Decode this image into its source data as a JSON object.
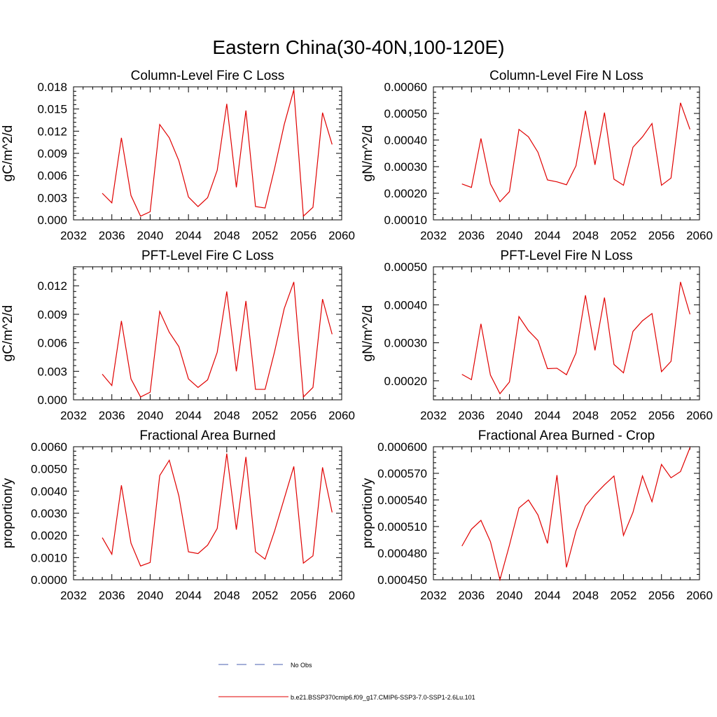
{
  "figure": {
    "title": "Eastern China(30-40N,100-120E)",
    "legend": [
      {
        "label": "No Obs",
        "color": "#4a5fb0",
        "dash": true
      },
      {
        "label": "b.e21.BSSP370cmip6.f09_g17.CMIP6-SSP3-7.0-SSP1-2.6Lu.101",
        "color": "#e00000",
        "dash": false
      }
    ]
  },
  "chart_data": [
    {
      "type": "line",
      "title": "Column-Level Fire C Loss",
      "ylabel": "gC/m^2/d",
      "xlim": [
        2032,
        2060
      ],
      "xticks": [
        "2032",
        "2036",
        "2040",
        "2044",
        "2048",
        "2052",
        "2056",
        "2060"
      ],
      "ylim": [
        0.0,
        0.018
      ],
      "yticks": [
        "0.000",
        "0.003",
        "0.006",
        "0.009",
        "0.012",
        "0.015",
        "0.018"
      ],
      "series": [
        {
          "color": "#e00000",
          "x": [
            2035,
            2036,
            2037,
            2038,
            2039,
            2040,
            2041,
            2042,
            2043,
            2044,
            2045,
            2046,
            2047,
            2048,
            2049,
            2050,
            2051,
            2052,
            2053,
            2054,
            2055,
            2056,
            2057,
            2058,
            2059
          ],
          "values": [
            0.0036,
            0.0023,
            0.0111,
            0.0033,
            0.0005,
            0.0011,
            0.0129,
            0.0111,
            0.008,
            0.0031,
            0.0018,
            0.003,
            0.0067,
            0.0157,
            0.0044,
            0.0148,
            0.0018,
            0.0016,
            0.007,
            0.0129,
            0.0176,
            0.0005,
            0.0017,
            0.0145,
            0.0102
          ]
        }
      ]
    },
    {
      "type": "line",
      "title": "Column-Level Fire N Loss",
      "ylabel": "gN/m^2/d",
      "xlim": [
        2032,
        2060
      ],
      "xticks": [
        "2032",
        "2036",
        "2040",
        "2044",
        "2048",
        "2052",
        "2056",
        "2060"
      ],
      "ylim": [
        0.0001,
        0.0006
      ],
      "yticks": [
        "0.00010",
        "0.00020",
        "0.00030",
        "0.00040",
        "0.00050",
        "0.00060"
      ],
      "series": [
        {
          "color": "#e00000",
          "x": [
            2035,
            2036,
            2037,
            2038,
            2039,
            2040,
            2041,
            2042,
            2043,
            2044,
            2045,
            2046,
            2047,
            2048,
            2049,
            2050,
            2051,
            2052,
            2053,
            2054,
            2055,
            2056,
            2057,
            2058,
            2059
          ],
          "values": [
            0.000235,
            0.000222,
            0.000406,
            0.000235,
            0.000168,
            0.000206,
            0.00044,
            0.000412,
            0.000354,
            0.00025,
            0.000243,
            0.000232,
            0.000303,
            0.00051,
            0.000307,
            0.000503,
            0.000253,
            0.00023,
            0.000373,
            0.000412,
            0.000462,
            0.00023,
            0.000257,
            0.00054,
            0.00044
          ]
        }
      ]
    },
    {
      "type": "line",
      "title": "PFT-Level Fire C Loss",
      "ylabel": "gC/m^2/d",
      "xlim": [
        2032,
        2060
      ],
      "xticks": [
        "2032",
        "2036",
        "2040",
        "2044",
        "2048",
        "2052",
        "2056",
        "2060"
      ],
      "ylim": [
        0.0,
        0.014
      ],
      "yticks": [
        "0.000",
        "0.003",
        "0.006",
        "0.009",
        "0.012"
      ],
      "series": [
        {
          "color": "#e00000",
          "x": [
            2035,
            2036,
            2037,
            2038,
            2039,
            2040,
            2041,
            2042,
            2043,
            2044,
            2045,
            2046,
            2047,
            2048,
            2049,
            2050,
            2051,
            2052,
            2053,
            2054,
            2055,
            2056,
            2057,
            2058,
            2059
          ],
          "values": [
            0.0027,
            0.0015,
            0.0083,
            0.0022,
            0.0003,
            0.0008,
            0.0093,
            0.0071,
            0.0056,
            0.0022,
            0.0013,
            0.0021,
            0.005,
            0.0114,
            0.003,
            0.0104,
            0.0011,
            0.0011,
            0.0051,
            0.0096,
            0.0124,
            0.0003,
            0.0013,
            0.0106,
            0.0069
          ]
        }
      ]
    },
    {
      "type": "line",
      "title": "PFT-Level Fire N Loss",
      "ylabel": "gN/m^2/d",
      "xlim": [
        2032,
        2060
      ],
      "xticks": [
        "2032",
        "2036",
        "2040",
        "2044",
        "2048",
        "2052",
        "2056",
        "2060"
      ],
      "ylim": [
        0.00015,
        0.0005
      ],
      "yticks": [
        "0.00020",
        "0.00030",
        "0.00040",
        "0.00050"
      ],
      "series": [
        {
          "color": "#e00000",
          "x": [
            2035,
            2036,
            2037,
            2038,
            2039,
            2040,
            2041,
            2042,
            2043,
            2044,
            2045,
            2046,
            2047,
            2048,
            2049,
            2050,
            2051,
            2052,
            2053,
            2054,
            2055,
            2056,
            2057,
            2058,
            2059
          ],
          "values": [
            0.000217,
            0.000203,
            0.00035,
            0.000215,
            0.000166,
            0.000197,
            0.000369,
            0.000332,
            0.000306,
            0.000232,
            0.000233,
            0.000216,
            0.000273,
            0.000425,
            0.00028,
            0.000419,
            0.000243,
            0.000221,
            0.00033,
            0.000358,
            0.000377,
            0.000224,
            0.000251,
            0.00046,
            0.000375
          ]
        }
      ]
    },
    {
      "type": "line",
      "title": "Fractional Area Burned",
      "ylabel": "proportion/y",
      "xlim": [
        2032,
        2060
      ],
      "xticks": [
        "2032",
        "2036",
        "2040",
        "2044",
        "2048",
        "2052",
        "2056",
        "2060"
      ],
      "ylim": [
        0.0,
        0.006
      ],
      "yticks": [
        "0.0000",
        "0.0010",
        "0.0020",
        "0.0030",
        "0.0040",
        "0.0050",
        "0.0060"
      ],
      "series": [
        {
          "color": "#e00000",
          "x": [
            2035,
            2036,
            2037,
            2038,
            2039,
            2040,
            2041,
            2042,
            2043,
            2044,
            2045,
            2046,
            2047,
            2048,
            2049,
            2050,
            2051,
            2052,
            2053,
            2054,
            2055,
            2056,
            2057,
            2058,
            2059
          ],
          "values": [
            0.0019,
            0.00115,
            0.00426,
            0.00165,
            0.00062,
            0.00078,
            0.0047,
            0.00539,
            0.00378,
            0.00126,
            0.00118,
            0.00156,
            0.00231,
            0.00569,
            0.00226,
            0.00554,
            0.00126,
            0.00093,
            0.00221,
            0.00366,
            0.00511,
            0.00075,
            0.00108,
            0.00507,
            0.00304
          ]
        }
      ]
    },
    {
      "type": "line",
      "title": "Fractional Area Burned - Crop",
      "ylabel": "proportion/y",
      "xlim": [
        2032,
        2060
      ],
      "xticks": [
        "2032",
        "2036",
        "2040",
        "2044",
        "2048",
        "2052",
        "2056",
        "2060"
      ],
      "ylim": [
        0.00045,
        0.0006
      ],
      "yticks": [
        "0.000450",
        "0.000480",
        "0.000510",
        "0.000540",
        "0.000570",
        "0.000600"
      ],
      "series": [
        {
          "color": "#e00000",
          "x": [
            2035,
            2036,
            2037,
            2038,
            2039,
            2040,
            2041,
            2042,
            2043,
            2044,
            2045,
            2046,
            2047,
            2048,
            2049,
            2050,
            2051,
            2052,
            2053,
            2054,
            2055,
            2056,
            2057,
            2058,
            2059
          ],
          "values": [
            0.000488,
            0.000507,
            0.000517,
            0.000493,
            0.00045,
            0.000489,
            0.000531,
            0.00054,
            0.000523,
            0.000491,
            0.000568,
            0.000464,
            0.000505,
            0.000533,
            0.000546,
            0.000557,
            0.000567,
            0.0005,
            0.000526,
            0.000567,
            0.000538,
            0.00058,
            0.000565,
            0.000572,
            0.000599
          ]
        }
      ]
    }
  ]
}
